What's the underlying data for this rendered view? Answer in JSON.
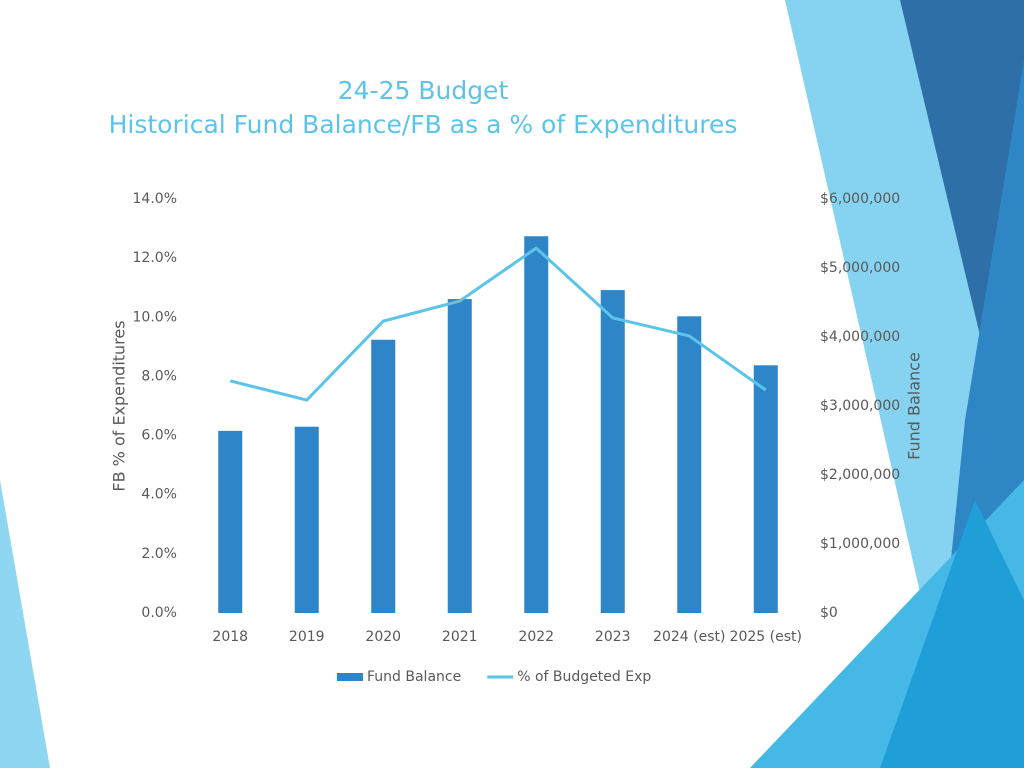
{
  "chart_data": {
    "type": "combo",
    "title": "24-25 Budget",
    "subtitle": "Historical Fund Balance/FB as a % of Expenditures",
    "y_label": "FB % of Expenditures",
    "y2_label": "Fund Balance",
    "categories": [
      "2018",
      "2019",
      "2020",
      "2021",
      "2022",
      "2023",
      "2024 (est)",
      "2025 (est)"
    ],
    "series": [
      {
        "name": "Fund Balance",
        "type": "bar",
        "axis": "y2",
        "color": "#2e86c8",
        "values": [
          2640000,
          2700000,
          3960000,
          4550000,
          5460000,
          4680000,
          4300000,
          3590000
        ]
      },
      {
        "name": "% of Budgeted Exp",
        "type": "line",
        "axis": "y",
        "color": "#5bc4e8",
        "values": [
          7.85,
          7.2,
          9.87,
          10.55,
          12.34,
          9.98,
          9.37,
          7.54
        ]
      }
    ],
    "ylim": [
      0,
      14
    ],
    "yticks": [
      {
        "value": 0,
        "label": "0.0%"
      },
      {
        "value": 2,
        "label": "2.0%"
      },
      {
        "value": 4,
        "label": "4.0%"
      },
      {
        "value": 6,
        "label": "6.0%"
      },
      {
        "value": 8,
        "label": "8.0%"
      },
      {
        "value": 10,
        "label": "10.0%"
      },
      {
        "value": 12,
        "label": "12.0%"
      },
      {
        "value": 14,
        "label": "14.0%"
      }
    ],
    "y2lim": [
      0,
      6000000
    ],
    "y2ticks": [
      {
        "value": 0,
        "label": "$0"
      },
      {
        "value": 1000000,
        "label": "$1,000,000"
      },
      {
        "value": 2000000,
        "label": "$2,000,000"
      },
      {
        "value": 3000000,
        "label": "$3,000,000"
      },
      {
        "value": 4000000,
        "label": "$4,000,000"
      },
      {
        "value": 5000000,
        "label": "$5,000,000"
      },
      {
        "value": 6000000,
        "label": "$6,000,000"
      }
    ],
    "grid": false,
    "legend": "bottom"
  }
}
